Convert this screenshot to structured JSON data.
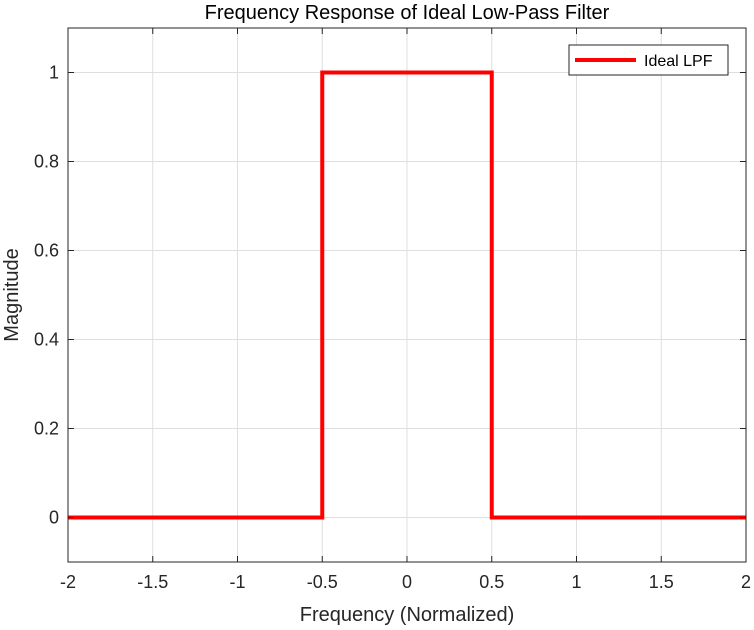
{
  "chart_data": {
    "type": "line",
    "title": "Frequency Response of Ideal Low-Pass Filter",
    "xlabel": "Frequency (Normalized)",
    "ylabel": "Magnitude",
    "xlim": [
      -2,
      2
    ],
    "ylim": [
      -0.1,
      1.1
    ],
    "xticks": [
      -2,
      -1.5,
      -1,
      -0.5,
      0,
      0.5,
      1,
      1.5,
      2
    ],
    "xtick_labels": [
      "-2",
      "-1.5",
      "-1",
      "-0.5",
      "0",
      "0.5",
      "1",
      "1.5",
      "2"
    ],
    "yticks": [
      0,
      0.2,
      0.4,
      0.6,
      0.8,
      1
    ],
    "ytick_labels": [
      "0",
      "0.2",
      "0.4",
      "0.6",
      "0.8",
      "1"
    ],
    "grid": true,
    "legend_position": "top-right",
    "series": [
      {
        "name": "Ideal LPF",
        "color": "#ff0000",
        "x": [
          -2,
          -0.5,
          -0.5,
          0.5,
          0.5,
          2
        ],
        "y": [
          0,
          0,
          1,
          1,
          0,
          0
        ]
      }
    ]
  }
}
